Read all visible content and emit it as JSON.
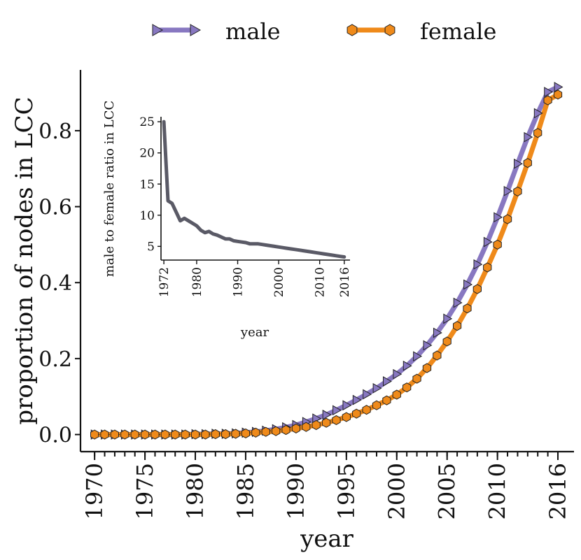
{
  "chart_data": [
    {
      "type": "line",
      "legend": {
        "placement": "top-center",
        "entries": [
          "male",
          "female"
        ]
      },
      "xlabel": "year",
      "ylabel": "proportion of nodes in LCC",
      "xlim": [
        1968.6,
        2017.6
      ],
      "ylim": [
        -0.045,
        0.96
      ],
      "x_ticks": [
        1970,
        1975,
        1980,
        1985,
        1990,
        1995,
        2000,
        2005,
        2010,
        2016
      ],
      "y_ticks": [
        "0.0",
        "0.2",
        "0.4",
        "0.6",
        "0.8"
      ],
      "x": [
        1970,
        1971,
        1972,
        1973,
        1974,
        1975,
        1976,
        1977,
        1978,
        1979,
        1980,
        1981,
        1982,
        1983,
        1984,
        1985,
        1986,
        1987,
        1988,
        1989,
        1990,
        1991,
        1992,
        1993,
        1994,
        1995,
        1996,
        1997,
        1998,
        1999,
        2000,
        2001,
        2002,
        2003,
        2004,
        2005,
        2006,
        2007,
        2008,
        2009,
        2010,
        2011,
        2012,
        2013,
        2014,
        2015,
        2016
      ],
      "series": [
        {
          "name": "male",
          "color": "#8878c1",
          "marker": "triangle-right",
          "values": [
            0.0,
            0.0,
            0.0,
            0.0,
            0.0,
            0.0,
            0.0,
            0.0,
            0.0,
            0.0,
            0.001,
            0.001,
            0.002,
            0.002,
            0.003,
            0.005,
            0.007,
            0.01,
            0.014,
            0.019,
            0.025,
            0.033,
            0.042,
            0.052,
            0.064,
            0.077,
            0.091,
            0.106,
            0.122,
            0.14,
            0.159,
            0.181,
            0.206,
            0.235,
            0.268,
            0.305,
            0.347,
            0.395,
            0.448,
            0.507,
            0.572,
            0.641,
            0.713,
            0.783,
            0.846,
            0.902,
            0.915
          ]
        },
        {
          "name": "female",
          "color": "#ef8a1a",
          "marker": "hexagon",
          "values": [
            0.0,
            0.0,
            0.0,
            0.0,
            0.0,
            0.0,
            0.0,
            0.0,
            0.0,
            0.0,
            0.0,
            0.0,
            0.001,
            0.001,
            0.002,
            0.003,
            0.005,
            0.007,
            0.009,
            0.012,
            0.016,
            0.02,
            0.025,
            0.031,
            0.038,
            0.046,
            0.055,
            0.065,
            0.077,
            0.09,
            0.105,
            0.124,
            0.147,
            0.175,
            0.208,
            0.245,
            0.286,
            0.332,
            0.383,
            0.44,
            0.5,
            0.567,
            0.64,
            0.715,
            0.794,
            0.88,
            0.895
          ]
        }
      ]
    },
    {
      "type": "line",
      "xlabel": "year",
      "ylabel": "male to female ratio in LCC",
      "xlim": [
        1971.3,
        2017.4
      ],
      "ylim": [
        2.8,
        25.8
      ],
      "x_ticks": [
        1972,
        1980,
        1990,
        2000,
        2010,
        2016
      ],
      "y_ticks": [
        5,
        10,
        15,
        20,
        25
      ],
      "series": [
        {
          "name": "ratio",
          "color": "#5a5a66",
          "x": [
            1972,
            1973,
            1974,
            1975,
            1976,
            1977,
            1978,
            1979,
            1980,
            1981,
            1982,
            1983,
            1984,
            1985,
            1986,
            1987,
            1988,
            1989,
            1990,
            1991,
            1992,
            1993,
            1994,
            1995,
            1996,
            1997,
            1998,
            1999,
            2000,
            2001,
            2002,
            2003,
            2004,
            2005,
            2006,
            2007,
            2008,
            2009,
            2010,
            2011,
            2012,
            2013,
            2014,
            2015,
            2016
          ],
          "values": [
            25.0,
            12.3,
            11.9,
            10.5,
            9.1,
            9.5,
            9.1,
            8.7,
            8.3,
            7.6,
            7.2,
            7.4,
            7.0,
            6.8,
            6.5,
            6.2,
            6.2,
            5.9,
            5.8,
            5.7,
            5.6,
            5.4,
            5.4,
            5.4,
            5.3,
            5.2,
            5.1,
            5.0,
            4.9,
            4.8,
            4.7,
            4.6,
            4.5,
            4.4,
            4.3,
            4.2,
            4.1,
            4.0,
            3.9,
            3.8,
            3.7,
            3.6,
            3.5,
            3.4,
            3.3
          ]
        }
      ]
    }
  ]
}
